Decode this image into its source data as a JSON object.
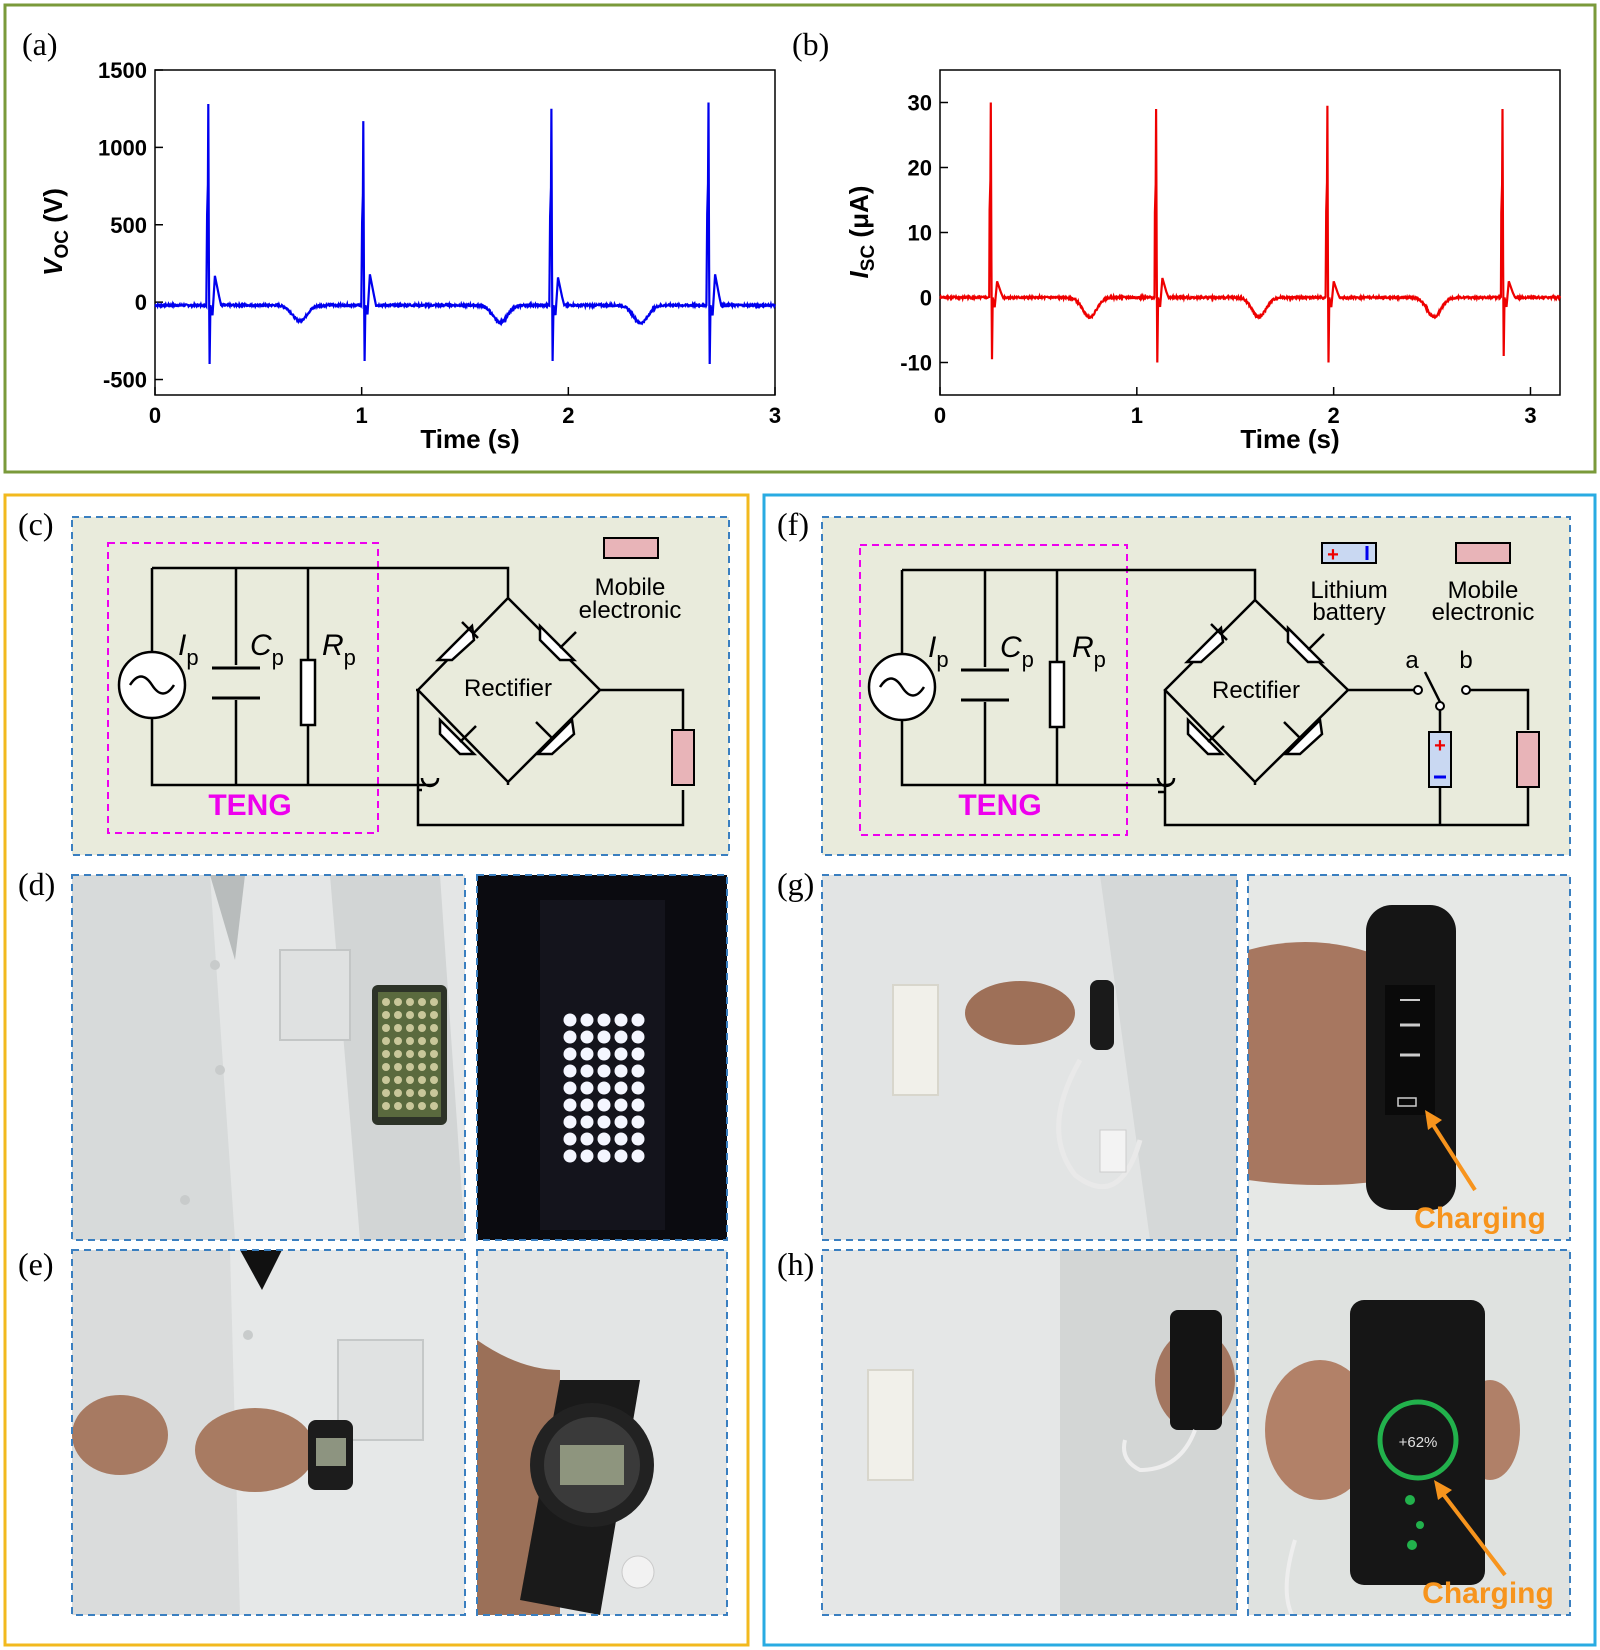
{
  "chart_data": [
    {
      "type": "line",
      "panel": "(a)",
      "xlabel": "Time (s)",
      "ylabel_main": "V",
      "ylabel_sub": "OC",
      "ylabel_unit": " (V)",
      "xlim": [
        0,
        3
      ],
      "ylim": [
        -600,
        1500
      ],
      "xticks": [
        0,
        1,
        2,
        3
      ],
      "yticks": [
        -500,
        0,
        500,
        1000,
        1500
      ],
      "color": "#0000ee",
      "baseline": -20,
      "peaks": [
        {
          "t": 0.26,
          "max": 1280,
          "min": -400,
          "rebound": 170
        },
        {
          "t": 1.01,
          "max": 1170,
          "min": -380,
          "rebound": 180
        },
        {
          "t": 1.92,
          "max": 1250,
          "min": -380,
          "rebound": 160
        },
        {
          "t": 2.68,
          "max": 1290,
          "min": -400,
          "rebound": 180
        }
      ],
      "dips": [
        {
          "t": 0.7,
          "depth": -100
        },
        {
          "t": 1.67,
          "depth": -110
        },
        {
          "t": 2.35,
          "depth": -115
        }
      ]
    },
    {
      "type": "line",
      "panel": "(b)",
      "xlabel": "Time (s)",
      "ylabel_main": "I",
      "ylabel_sub": "SC",
      "ylabel_unit": " (μA)",
      "xlim": [
        0,
        3.15
      ],
      "ylim": [
        -15,
        35
      ],
      "xticks": [
        0,
        1,
        2,
        3
      ],
      "yticks": [
        -10,
        0,
        10,
        20,
        30
      ],
      "color": "#ee0000",
      "baseline": 0,
      "peaks": [
        {
          "t": 0.26,
          "max": 30,
          "min": -9.5,
          "rebound": 2.5
        },
        {
          "t": 1.1,
          "max": 29,
          "min": -10,
          "rebound": 3
        },
        {
          "t": 1.97,
          "max": 29.5,
          "min": -10,
          "rebound": 2.5
        },
        {
          "t": 2.86,
          "max": 29,
          "min": -9,
          "rebound": 2.5
        }
      ],
      "dips": [
        {
          "t": 0.76,
          "depth": -3
        },
        {
          "t": 1.62,
          "depth": -3
        },
        {
          "t": 2.51,
          "depth": -3
        }
      ]
    }
  ],
  "panels": {
    "a": "(a)",
    "b": "(b)",
    "c": "(c)",
    "d": "(d)",
    "e": "(e)",
    "f": "(f)",
    "g": "(g)",
    "h": "(h)"
  },
  "circuit": {
    "ip_main": "I",
    "ip_sub": "p",
    "cp_main": "C",
    "cp_sub": "p",
    "rp_main": "R",
    "rp_sub": "p",
    "rectifier": "Rectifier",
    "teng": "TENG",
    "mobile_line1": "Mobile",
    "mobile_line2": "electronic",
    "battery_line1": "Lithium",
    "battery_line2": "battery",
    "switch_a": "a",
    "switch_b": "b"
  },
  "photos": {
    "charging_g": "Charging",
    "charging_h": "Charging",
    "phone_percent": "+62%"
  },
  "colors": {
    "frame_top": "#7a9a3a",
    "frame_left": "#f2b91e",
    "frame_right": "#29abe2",
    "dashed": "#3a7fc0",
    "circuit_bg": "#e9ebdc",
    "load": "#e8b4b8",
    "teng": "#ee00ee",
    "charging": "#f7941d"
  }
}
